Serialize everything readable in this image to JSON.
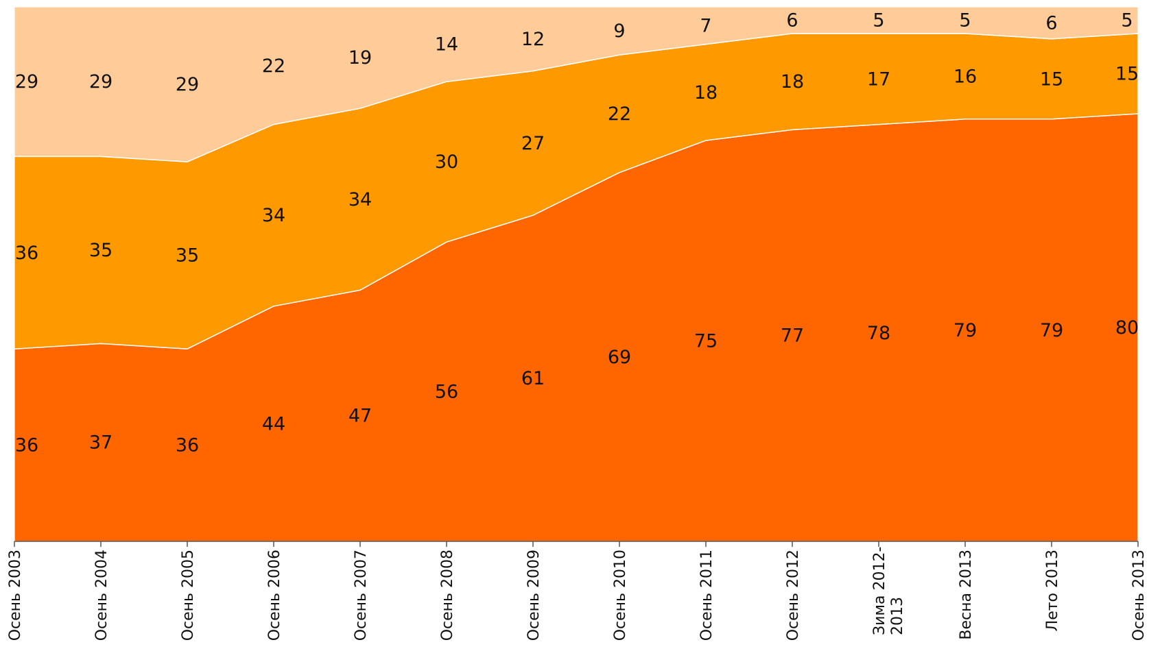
{
  "chart_data": {
    "type": "area",
    "stacked": true,
    "title": "",
    "xlabel": "",
    "ylabel": "",
    "ylim": [
      0,
      100
    ],
    "grid": false,
    "legend": "none",
    "categories": [
      [
        "Осень 2003"
      ],
      [
        "Осень 2004"
      ],
      [
        "Осень 2005"
      ],
      [
        "Осень 2006"
      ],
      [
        "Осень 2007"
      ],
      [
        "Осень 2008"
      ],
      [
        "Осень 2009"
      ],
      [
        "Осень 2010"
      ],
      [
        "Осень 2011"
      ],
      [
        "Осень 2012"
      ],
      [
        "Зима 2012-",
        "2013"
      ],
      [
        "Весна 2013"
      ],
      [
        "Лето 2013"
      ],
      [
        "Осень 2013"
      ]
    ],
    "series": [
      {
        "color": "#FF6600",
        "values": [
          36,
          37,
          36,
          44,
          47,
          56,
          61,
          69,
          75,
          77,
          78,
          79,
          79,
          80
        ]
      },
      {
        "color": "#FF9900",
        "values": [
          36,
          35,
          35,
          34,
          34,
          30,
          27,
          22,
          18,
          18,
          17,
          16,
          15,
          15
        ]
      },
      {
        "color": "#FFCC99",
        "values": [
          29,
          29,
          29,
          22,
          19,
          14,
          12,
          9,
          7,
          6,
          5,
          5,
          6,
          5
        ]
      }
    ]
  }
}
